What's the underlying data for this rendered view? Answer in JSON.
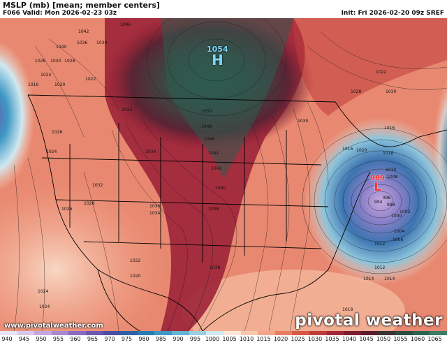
{
  "header": {
    "title": "MSLP (mb) [mean; member centers]",
    "valid": "F066 Valid: Mon 2026-02-23 03z",
    "init": "Init: Fri 2026-02-20 09z SREF"
  },
  "footer": {
    "site": "www.pivotalweather.com",
    "brand": "pivotal weather"
  },
  "colorbar": {
    "labels": [
      "940",
      "945",
      "950",
      "955",
      "960",
      "965",
      "970",
      "975",
      "980",
      "985",
      "990",
      "995",
      "1000",
      "1005",
      "1010",
      "1015",
      "1020",
      "1025",
      "1030",
      "1035",
      "1040",
      "1045",
      "1050",
      "1055",
      "1060",
      "1065"
    ],
    "colors": [
      "#e8e4f4",
      "#d8c8ec",
      "#c4a8e0",
      "#a888d0",
      "#8c6cc0",
      "#6c58b0",
      "#4a4ea4",
      "#2e60a8",
      "#2a7cb4",
      "#3c98c4",
      "#64b4d4",
      "#9cd0e0",
      "#d0e8f0",
      "#fbe6d8",
      "#f8c8b0",
      "#f4a488",
      "#ea7e64",
      "#d85848",
      "#c03c3c",
      "#a02838",
      "#801c30",
      "#5c1c2c",
      "#3c3434",
      "#2c4c44",
      "#2c6454",
      "#3c7c64"
    ]
  },
  "highs": [
    {
      "symbol": "H",
      "value": "1054"
    }
  ],
  "lows": [
    {
      "symbol": "L",
      "value": "989"
    }
  ],
  "isobar_labels": [
    "1046",
    "1042",
    "1040",
    "1036",
    "1034",
    "1030",
    "1028",
    "1026",
    "1024",
    "1022",
    "1020",
    "1016",
    "1032",
    "1034",
    "1038",
    "1030",
    "1028",
    "1026",
    "1024",
    "1022",
    "1050",
    "1048",
    "1046",
    "1044",
    "1042",
    "1040",
    "1038",
    "1036",
    "1034",
    "1032",
    "1030",
    "1028",
    "1026",
    "1024",
    "1022",
    "1020",
    "1018",
    "1016",
    "1014",
    "1012",
    "1010",
    "1008",
    "1006",
    "1004",
    "1002",
    "1000",
    "998",
    "996",
    "994",
    "1024",
    "1020",
    "1018",
    "1016",
    "1014",
    "1012"
  ]
}
